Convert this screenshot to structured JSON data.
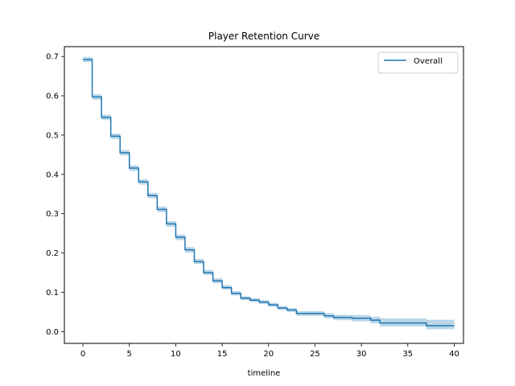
{
  "chart_data": {
    "type": "line",
    "title": "Player Retention Curve",
    "xlabel": "timeline",
    "ylabel": "",
    "xlim": [
      -2,
      41
    ],
    "ylim": [
      -0.03,
      0.725
    ],
    "xticks": [
      0,
      5,
      10,
      15,
      20,
      25,
      30,
      35,
      40
    ],
    "yticks": [
      0.0,
      0.1,
      0.2,
      0.3,
      0.4,
      0.5,
      0.6,
      0.7
    ],
    "grid": false,
    "legend": "top-right",
    "series": [
      {
        "name": "Overall",
        "color": "#1f77b4",
        "band_color": "#1f77b4",
        "x": [
          0,
          1,
          2,
          3,
          4,
          5,
          6,
          7,
          8,
          9,
          10,
          11,
          12,
          13,
          14,
          15,
          16,
          17,
          18,
          19,
          20,
          21,
          22,
          23,
          26,
          27,
          29,
          31,
          32,
          37,
          40
        ],
        "y": [
          0.692,
          0.597,
          0.545,
          0.497,
          0.455,
          0.416,
          0.381,
          0.346,
          0.311,
          0.274,
          0.24,
          0.208,
          0.178,
          0.15,
          0.129,
          0.112,
          0.097,
          0.085,
          0.08,
          0.075,
          0.068,
          0.06,
          0.055,
          0.046,
          0.04,
          0.036,
          0.034,
          0.029,
          0.022,
          0.015,
          0.015
        ],
        "lower": [
          0.685,
          0.59,
          0.538,
          0.49,
          0.448,
          0.409,
          0.374,
          0.339,
          0.304,
          0.267,
          0.233,
          0.201,
          0.172,
          0.144,
          0.123,
          0.107,
          0.092,
          0.08,
          0.075,
          0.07,
          0.063,
          0.055,
          0.05,
          0.04,
          0.034,
          0.029,
          0.026,
          0.021,
          0.013,
          0.006,
          0.006
        ],
        "upper": [
          0.699,
          0.604,
          0.552,
          0.504,
          0.462,
          0.423,
          0.388,
          0.353,
          0.318,
          0.281,
          0.247,
          0.215,
          0.185,
          0.157,
          0.136,
          0.118,
          0.103,
          0.09,
          0.085,
          0.08,
          0.073,
          0.065,
          0.06,
          0.052,
          0.047,
          0.043,
          0.042,
          0.038,
          0.034,
          0.03,
          0.03
        ]
      }
    ]
  }
}
